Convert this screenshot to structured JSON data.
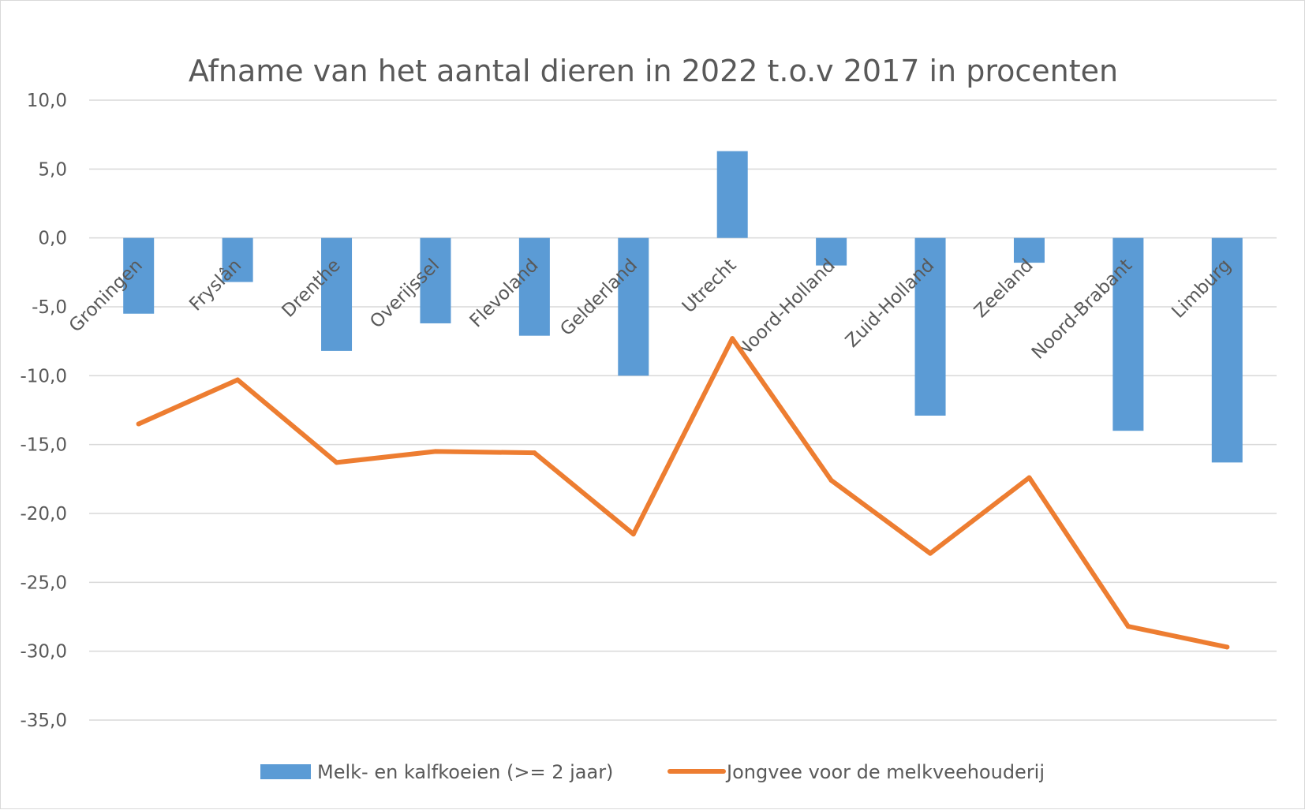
{
  "chart_data": {
    "type": "bar+line",
    "title": "Afname van het aantal dieren in 2022 t.o.v 2017 in procenten",
    "categories": [
      "Groningen",
      "Fryslân",
      "Drenthe",
      "Overijssel",
      "Flevoland",
      "Gelderland",
      "Utrecht",
      "Noord-Holland",
      "Zuid-Holland",
      "Zeeland",
      "Noord-Brabant",
      "Limburg"
    ],
    "series": [
      {
        "name": "Melk- en kalfkoeien (>= 2 jaar)",
        "type": "bar",
        "color": "#5b9bd5",
        "values": [
          -5.5,
          -3.2,
          -8.2,
          -6.2,
          -7.1,
          -10.0,
          6.3,
          -2.0,
          -12.9,
          -1.8,
          -14.0,
          -16.3
        ]
      },
      {
        "name": "Jongvee voor de melkveehouderij",
        "type": "line",
        "color": "#ed7d31",
        "values": [
          -13.5,
          -10.3,
          -16.3,
          -15.5,
          -15.6,
          -21.5,
          -7.3,
          -17.6,
          -22.9,
          -17.4,
          -28.2,
          -29.7
        ]
      }
    ],
    "ylim": [
      -35,
      10
    ],
    "yticks": [
      10,
      5,
      0,
      -5,
      -10,
      -15,
      -20,
      -25,
      -30,
      -35
    ],
    "ytick_labels": [
      "10,0",
      "5,0",
      "0,0",
      "-5,0",
      "-10,0",
      "-15,0",
      "-20,0",
      "-25,0",
      "-30,0",
      "-35,0"
    ],
    "grid": true,
    "legend_position": "bottom",
    "gridline_color": "#d9d9d9",
    "text_color": "#595959"
  }
}
